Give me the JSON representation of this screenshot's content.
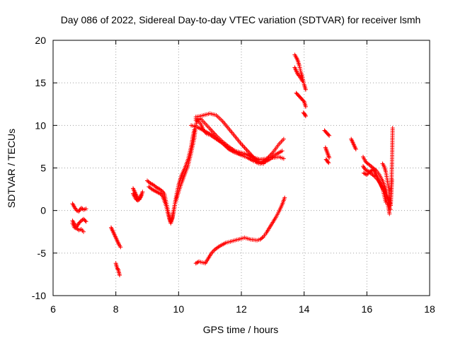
{
  "chart_data": {
    "type": "scatter",
    "title": "Day 086 of 2022, Sidereal Day-to-day VTEC variation (SDTVAR) for receiver lsmh",
    "xlabel": "GPS time / hours",
    "ylabel": "SDTVAR / TECUs",
    "xlim": [
      6,
      18
    ],
    "ylim": [
      -10,
      20
    ],
    "xticks": [
      6,
      8,
      10,
      12,
      14,
      16,
      18
    ],
    "yticks": [
      -10,
      -5,
      0,
      5,
      10,
      15,
      20
    ],
    "xtick_labels": [
      "6",
      "8",
      "10",
      "12",
      "14",
      "16",
      "18"
    ],
    "ytick_labels": [
      "-10",
      "-5",
      "0",
      "5",
      "10",
      "15",
      "20"
    ],
    "grid": true,
    "marker": "+",
    "color": "#ff0000",
    "series": [
      {
        "name": "seg1",
        "x": [
          6.62,
          6.68,
          6.75,
          6.82,
          6.9,
          6.97,
          7.05
        ],
        "y": [
          0.8,
          0.4,
          0.0,
          -0.1,
          0.3,
          0.1,
          0.2
        ]
      },
      {
        "name": "seg2",
        "x": [
          6.62,
          6.68,
          6.75,
          6.82,
          6.9,
          6.97,
          7.05
        ],
        "y": [
          -1.2,
          -1.6,
          -1.9,
          -1.5,
          -1.2,
          -1.0,
          -1.3
        ]
      },
      {
        "name": "seg3",
        "x": [
          6.62,
          6.68,
          6.75,
          6.82,
          6.9,
          6.97
        ],
        "y": [
          -1.5,
          -2.0,
          -2.1,
          -2.3,
          -2.2,
          -2.5
        ]
      },
      {
        "name": "seg4",
        "x": [
          7.85,
          7.9,
          7.95,
          8.0,
          8.05,
          8.1,
          8.15
        ],
        "y": [
          -2.0,
          -2.4,
          -2.8,
          -3.2,
          -3.6,
          -4.0,
          -4.3
        ]
      },
      {
        "name": "seg5",
        "x": [
          8.0,
          8.02,
          8.05,
          8.08,
          8.1,
          8.12
        ],
        "y": [
          -6.2,
          -6.5,
          -6.8,
          -7.0,
          -7.3,
          -7.6
        ]
      },
      {
        "name": "seg6",
        "x": [
          8.55,
          8.6,
          8.65,
          8.7,
          8.75,
          8.8,
          8.85
        ],
        "y": [
          2.6,
          2.2,
          1.8,
          1.5,
          1.4,
          1.6,
          2.2
        ]
      },
      {
        "name": "seg7",
        "x": [
          8.55,
          8.6,
          8.65,
          8.7,
          8.75,
          8.8
        ],
        "y": [
          2.0,
          1.6,
          1.3,
          1.2,
          1.3,
          1.8
        ]
      },
      {
        "name": "seg8",
        "x": [
          9.0,
          9.1,
          9.2,
          9.3,
          9.4,
          9.5,
          9.55,
          9.6,
          9.65,
          9.7,
          9.75,
          9.8,
          9.85,
          9.9,
          9.95,
          10.0,
          10.05,
          10.1,
          10.2,
          10.3,
          10.4,
          10.45,
          10.5
        ],
        "y": [
          3.5,
          3.2,
          3.0,
          2.7,
          2.5,
          2.2,
          1.9,
          1.0,
          0.2,
          -0.6,
          -1.3,
          -0.8,
          0.2,
          1.2,
          2.2,
          3.0,
          3.6,
          4.2,
          5.0,
          6.0,
          7.5,
          8.6,
          9.5
        ]
      },
      {
        "name": "seg9",
        "x": [
          9.05,
          9.15,
          9.25,
          9.35,
          9.45,
          9.5,
          9.6,
          9.65,
          9.7,
          9.75,
          9.8,
          9.85,
          9.9,
          10.0,
          10.1,
          10.2,
          10.3,
          10.4,
          10.5,
          10.55,
          10.6
        ],
        "y": [
          2.8,
          2.5,
          2.3,
          2.1,
          1.9,
          1.6,
          0.6,
          -0.2,
          -0.9,
          -1.5,
          -0.9,
          0.0,
          1.0,
          2.2,
          3.3,
          4.3,
          5.3,
          6.8,
          8.5,
          10.0,
          10.8
        ]
      },
      {
        "name": "seg10",
        "x": [
          10.55,
          10.7,
          10.9,
          11.0,
          11.2,
          11.4,
          11.6,
          11.8,
          12.0,
          12.2,
          12.4,
          12.5,
          12.6,
          12.8,
          13.0,
          13.2,
          13.35
        ],
        "y": [
          11.0,
          11.1,
          11.3,
          11.4,
          11.2,
          10.5,
          9.6,
          8.7,
          7.8,
          7.0,
          6.2,
          5.6,
          5.5,
          6.0,
          6.8,
          7.8,
          8.4
        ]
      },
      {
        "name": "seg11",
        "x": [
          10.55,
          10.7,
          10.85,
          11.0,
          11.2,
          11.4,
          11.6,
          11.8,
          12.0,
          12.2,
          12.4,
          12.55,
          12.7,
          12.9,
          13.1,
          13.3
        ],
        "y": [
          10.6,
          10.8,
          10.2,
          9.6,
          8.8,
          8.1,
          7.5,
          7.0,
          6.8,
          6.6,
          6.2,
          5.8,
          5.6,
          6.0,
          6.6,
          7.0
        ]
      },
      {
        "name": "seg12",
        "x": [
          10.4,
          10.6,
          10.8,
          11.0,
          11.2,
          11.4,
          11.6,
          11.8,
          12.0,
          12.2,
          12.4,
          12.6,
          12.8,
          13.0,
          13.2,
          13.35
        ],
        "y": [
          10.0,
          9.8,
          9.4,
          9.0,
          8.5,
          7.9,
          7.2,
          6.8,
          6.6,
          6.5,
          6.2,
          6.0,
          6.1,
          6.2,
          6.3,
          6.1
        ]
      },
      {
        "name": "seg13",
        "x": [
          10.55,
          10.7,
          10.8,
          10.9,
          11.0,
          11.2,
          11.4,
          11.6,
          11.8,
          12.0,
          12.2,
          12.4,
          12.6,
          12.7
        ],
        "y": [
          10.8,
          10.2,
          9.4,
          9.0,
          8.9,
          8.4,
          7.9,
          7.3,
          6.9,
          6.5,
          6.2,
          5.8,
          5.6,
          5.5
        ]
      },
      {
        "name": "seg14",
        "x": [
          10.55,
          10.65,
          10.75,
          10.85,
          10.95,
          11.05,
          11.15,
          11.3,
          11.5,
          11.7,
          11.9,
          12.1,
          12.3,
          12.5,
          12.6,
          12.7,
          12.8,
          12.9,
          13.0,
          13.1,
          13.2,
          13.3,
          13.38
        ],
        "y": [
          -6.2,
          -6.0,
          -6.1,
          -6.2,
          -5.6,
          -5.0,
          -4.6,
          -4.2,
          -3.8,
          -3.6,
          -3.4,
          -3.2,
          -3.4,
          -3.5,
          -3.4,
          -3.1,
          -2.6,
          -2.0,
          -1.4,
          -0.8,
          -0.1,
          0.7,
          1.5
        ]
      },
      {
        "name": "seg15",
        "x": [
          13.7,
          13.75,
          13.8,
          13.85,
          13.9,
          13.95,
          14.0,
          14.05
        ],
        "y": [
          18.3,
          18.0,
          17.6,
          17.0,
          16.2,
          15.6,
          14.8,
          14.2
        ]
      },
      {
        "name": "seg16",
        "x": [
          13.7,
          13.75,
          13.8,
          13.85,
          13.9,
          13.95
        ],
        "y": [
          16.8,
          16.4,
          16.0,
          15.8,
          15.5,
          15.2
        ]
      },
      {
        "name": "seg17",
        "x": [
          13.75,
          13.8,
          13.85,
          13.9,
          13.95,
          14.0,
          14.05
        ],
        "y": [
          13.8,
          13.6,
          13.4,
          13.2,
          13.0,
          12.8,
          12.2
        ]
      },
      {
        "name": "seg18",
        "x": [
          13.98,
          14.02,
          14.05
        ],
        "y": [
          11.5,
          11.3,
          11.1
        ]
      },
      {
        "name": "seg19",
        "x": [
          14.65,
          14.7,
          14.75,
          14.8
        ],
        "y": [
          9.4,
          9.2,
          9.0,
          8.8
        ]
      },
      {
        "name": "seg20",
        "x": [
          14.68,
          14.72,
          14.76,
          14.8
        ],
        "y": [
          7.4,
          7.0,
          6.6,
          6.2
        ]
      },
      {
        "name": "seg21",
        "x": [
          14.7,
          14.74,
          14.78
        ],
        "y": [
          6.0,
          5.8,
          5.6
        ]
      },
      {
        "name": "seg22",
        "x": [
          15.5,
          15.55,
          15.6,
          15.65
        ],
        "y": [
          8.4,
          8.0,
          7.6,
          7.2
        ]
      },
      {
        "name": "seg23",
        "x": [
          15.88,
          15.95,
          16.0,
          16.1,
          16.2,
          16.3,
          16.4,
          16.5,
          16.6,
          16.65,
          16.7,
          16.75
        ],
        "y": [
          6.3,
          5.8,
          5.6,
          5.3,
          5.0,
          4.7,
          4.2,
          3.5,
          2.5,
          1.6,
          0.8,
          0.1
        ]
      },
      {
        "name": "seg24",
        "x": [
          15.88,
          15.95,
          16.05,
          16.15,
          16.25,
          16.35,
          16.45,
          16.55,
          16.6,
          16.68,
          16.72
        ],
        "y": [
          5.2,
          4.8,
          4.6,
          4.3,
          4.0,
          3.6,
          3.0,
          2.2,
          1.4,
          0.5,
          -0.4
        ]
      },
      {
        "name": "seg25",
        "x": [
          15.9,
          16.0,
          16.1,
          16.2,
          16.3,
          16.4,
          16.5,
          16.55,
          16.6
        ],
        "y": [
          4.4,
          4.2,
          4.6,
          4.8,
          4.2,
          3.4,
          2.6,
          1.8,
          1.0
        ]
      },
      {
        "name": "seg26",
        "x": [
          16.5,
          16.55,
          16.6,
          16.65,
          16.7,
          16.72,
          16.75,
          16.78,
          16.8,
          16.82
        ],
        "y": [
          5.5,
          5.2,
          4.6,
          3.6,
          2.5,
          1.6,
          1.0,
          2.8,
          5.5,
          9.7
        ]
      },
      {
        "name": "seg27",
        "x": [
          16.55,
          16.62,
          16.7,
          16.76,
          16.8
        ],
        "y": [
          2.6,
          1.8,
          1.2,
          0.6,
          3.6
        ]
      }
    ]
  }
}
